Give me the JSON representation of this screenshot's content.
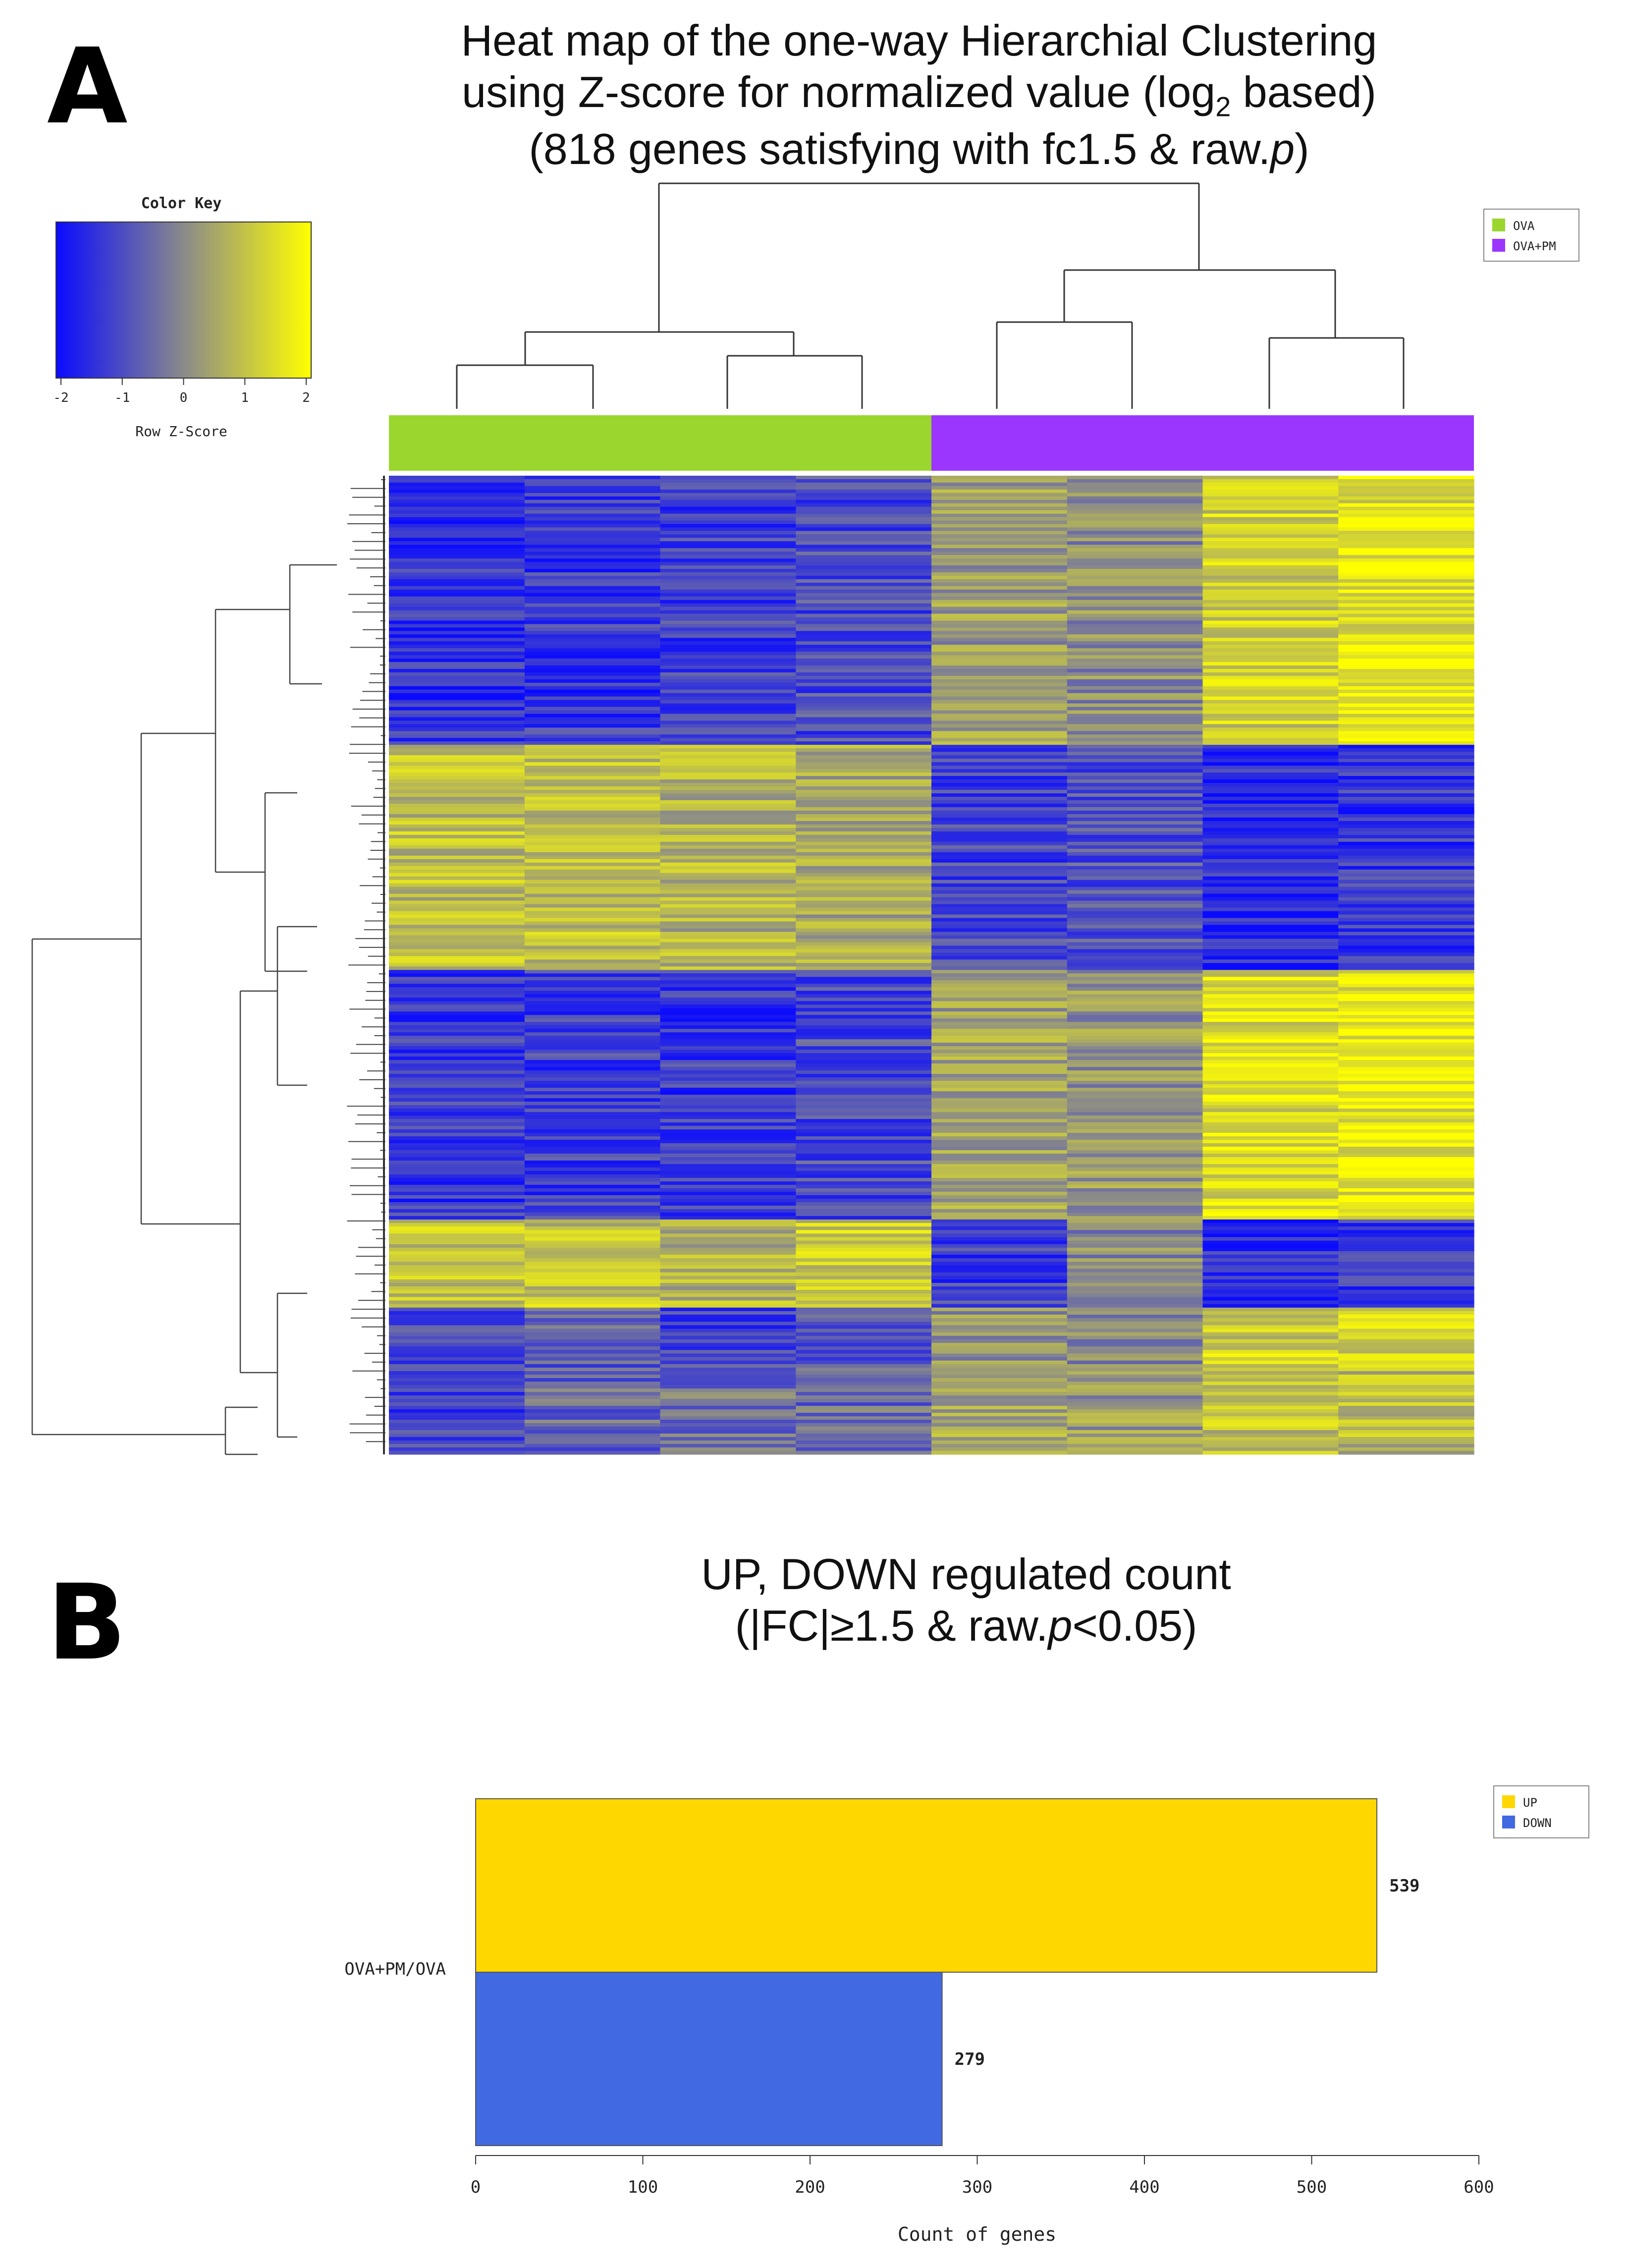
{
  "panel_a": {
    "letter": "A",
    "title_line1": "Heat map of the one-way Hierarchial Clustering",
    "title_line2_pre": "using Z-score for normalized value (log",
    "title_line2_sub": "2",
    "title_line2_post": " based)",
    "title_line3_pre": "(818 genes satisfying with fc1.5 & raw.",
    "title_line3_italic": "p",
    "title_line3_post": ")",
    "color_key": {
      "title": "Color Key",
      "xlabel": "Row Z-Score",
      "ticks": [
        "-2",
        "-1",
        "0",
        "1",
        "2"
      ],
      "colors": {
        "low": "#0a0aff",
        "mid": "#8a8a8a",
        "high": "#ffff00"
      }
    },
    "legend": [
      {
        "label": "OVA",
        "color": "#9ad62e"
      },
      {
        "label": "OVA+PM",
        "color": "#9b36ff"
      }
    ]
  },
  "panel_b": {
    "letter": "B",
    "title_line1": "UP, DOWN regulated count",
    "title_line2_pre": "(|FC|≥1.5 & raw.",
    "title_line2_italic": "p",
    "title_line2_post": "<0.05)"
  },
  "chart_data": [
    {
      "type": "heatmap",
      "title": "Heat map of the one-way Hierarchial Clustering using Z-score for normalized value (log2 based) (818 genes satisfying with fc1.5 & raw.p)",
      "n_genes": 818,
      "groups": [
        "OVA",
        "OVA",
        "OVA",
        "OVA",
        "OVA+PM",
        "OVA+PM",
        "OVA+PM",
        "OVA+PM"
      ],
      "zscore_range": [
        -2,
        2
      ],
      "row_blocks": [
        {
          "fraction": 0.275,
          "zscores": [
            -1.4,
            -1.3,
            -1.2,
            -1.0,
            0.3,
            0.1,
            1.2,
            1.5
          ]
        },
        {
          "fraction": 0.23,
          "zscores": [
            0.9,
            0.9,
            0.7,
            0.6,
            -1.1,
            -0.9,
            -1.5,
            -1.3
          ]
        },
        {
          "fraction": 0.255,
          "zscores": [
            -1.3,
            -1.2,
            -1.3,
            -1.0,
            0.4,
            0.2,
            1.4,
            1.6
          ]
        },
        {
          "fraction": 0.09,
          "zscores": [
            1.0,
            1.0,
            0.7,
            1.1,
            -1.2,
            0.0,
            -1.5,
            -1.2
          ]
        },
        {
          "fraction": 0.065,
          "zscores": [
            -1.0,
            -0.7,
            -1.1,
            -0.8,
            0.1,
            0.0,
            1.2,
            1.3
          ]
        },
        {
          "fraction": 0.085,
          "zscores": [
            -1.1,
            -0.6,
            -0.4,
            -0.5,
            0.5,
            0.3,
            1.0,
            0.8
          ]
        }
      ]
    },
    {
      "type": "bar",
      "orientation": "horizontal",
      "title": "UP, DOWN regulated count (|FC|≥1.5 & raw.p<0.05)",
      "categories": [
        "OVA+PM/OVA"
      ],
      "series": [
        {
          "name": "UP",
          "values": [
            539
          ],
          "color": "#ffd700"
        },
        {
          "name": "DOWN",
          "values": [
            279
          ],
          "color": "#4169e1"
        }
      ],
      "xlabel": "Count of genes",
      "xlim": [
        0,
        600
      ],
      "xticks": [
        0,
        100,
        200,
        300,
        400,
        500,
        600
      ],
      "legend_position": "top-right"
    }
  ]
}
